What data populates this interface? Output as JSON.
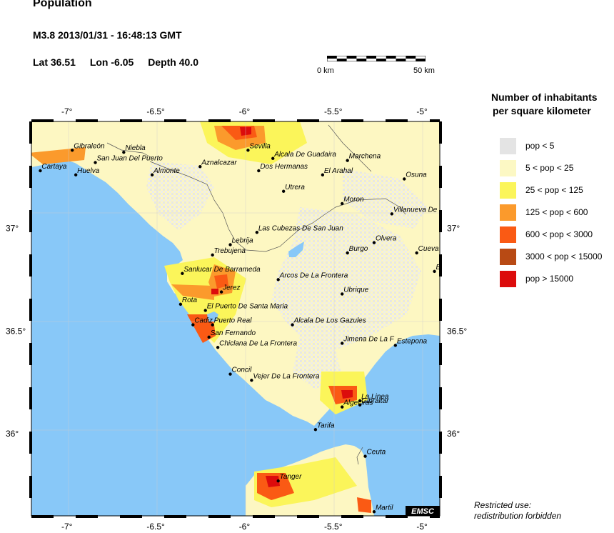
{
  "header": {
    "title": "Population",
    "event": "M3.8  2013/01/31 - 16:48:13 GMT",
    "lat": "Lat 36.51",
    "lon": "Lon  -6.05",
    "depth": "Depth  40.0"
  },
  "scale": {
    "start_label": "0 km",
    "end_label": "50 km"
  },
  "map": {
    "lon_range": [
      -7.2,
      -4.9
    ],
    "lat_range": [
      35.6,
      37.52
    ],
    "lon_ticks": [
      "-7°",
      "-6.5°",
      "-6°",
      "-5.5°",
      "-5°"
    ],
    "lon_tick_values": [
      -7,
      -6.5,
      -6,
      -5.5,
      -5
    ],
    "lat_ticks": [
      "37°",
      "36.5°",
      "36°"
    ],
    "lat_tick_values": [
      37,
      36.5,
      36
    ],
    "colors": {
      "sea": "#88c8f8",
      "land": "#fdf7c2",
      "low": "#e8e8e8",
      "mid": "#f8ef5a",
      "orange": "#f89a30",
      "red": "#d81010"
    },
    "cities": [
      {
        "name": "Gibraleón",
        "lon": -6.97,
        "lat": 37.38
      },
      {
        "name": "Niebla",
        "lon": -6.68,
        "lat": 37.37
      },
      {
        "name": "Sevilla",
        "lon": -5.98,
        "lat": 37.38
      },
      {
        "name": "Cartaya",
        "lon": -7.15,
        "lat": 37.28
      },
      {
        "name": "Huelva",
        "lon": -6.95,
        "lat": 37.26
      },
      {
        "name": "San Juan Del Puerto",
        "lon": -6.84,
        "lat": 37.32
      },
      {
        "name": "Almonte",
        "lon": -6.52,
        "lat": 37.26
      },
      {
        "name": "Aznalcazar",
        "lon": -6.25,
        "lat": 37.3
      },
      {
        "name": "Alcala De Guadaira",
        "lon": -5.84,
        "lat": 37.34
      },
      {
        "name": "Marchena",
        "lon": -5.42,
        "lat": 37.33
      },
      {
        "name": "Dos Hermanas",
        "lon": -5.92,
        "lat": 37.28
      },
      {
        "name": "El Arahal",
        "lon": -5.56,
        "lat": 37.26
      },
      {
        "name": "Osuna",
        "lon": -5.1,
        "lat": 37.24
      },
      {
        "name": "Utrera",
        "lon": -5.78,
        "lat": 37.18
      },
      {
        "name": "Moron",
        "lon": -5.45,
        "lat": 37.12
      },
      {
        "name": "Villanueva De",
        "lon": -5.17,
        "lat": 37.07
      },
      {
        "name": "Las Cubezas De San Juan",
        "lon": -5.93,
        "lat": 36.98
      },
      {
        "name": "Lebrija",
        "lon": -6.08,
        "lat": 36.92
      },
      {
        "name": "Olvera",
        "lon": -5.27,
        "lat": 36.93
      },
      {
        "name": "Trebujena",
        "lon": -6.18,
        "lat": 36.87
      },
      {
        "name": "Burgo",
        "lon": -5.42,
        "lat": 36.88
      },
      {
        "name": "Cueva",
        "lon": -5.03,
        "lat": 36.88
      },
      {
        "name": "Sanlucar De Barrameda",
        "lon": -6.35,
        "lat": 36.78
      },
      {
        "name": "Bu",
        "lon": -4.93,
        "lat": 36.79
      },
      {
        "name": "Arcos De La Frontera",
        "lon": -5.81,
        "lat": 36.75
      },
      {
        "name": "Jerez",
        "lon": -6.13,
        "lat": 36.69
      },
      {
        "name": "Ubrique",
        "lon": -5.45,
        "lat": 36.68
      },
      {
        "name": "Rota",
        "lon": -6.36,
        "lat": 36.63
      },
      {
        "name": "El Puerto De Santa Maria",
        "lon": -6.22,
        "lat": 36.6
      },
      {
        "name": "Cadiz",
        "lon": -6.29,
        "lat": 36.53
      },
      {
        "name": "Puerto Real",
        "lon": -6.18,
        "lat": 36.53
      },
      {
        "name": "Alcala De Los Gazules",
        "lon": -5.73,
        "lat": 36.53
      },
      {
        "name": "San Fernando",
        "lon": -6.2,
        "lat": 36.47
      },
      {
        "name": "Jimena De La F",
        "lon": -5.45,
        "lat": 36.44
      },
      {
        "name": "Estepona",
        "lon": -5.15,
        "lat": 36.43
      },
      {
        "name": "Chiclana De La Frontera",
        "lon": -6.15,
        "lat": 36.42
      },
      {
        "name": "Concil",
        "lon": -6.08,
        "lat": 36.29
      },
      {
        "name": "Vejer De La Frontera",
        "lon": -5.96,
        "lat": 36.26
      },
      {
        "name": "La Linea",
        "lon": -5.35,
        "lat": 36.16
      },
      {
        "name": "Algeciras",
        "lon": -5.45,
        "lat": 36.13
      },
      {
        "name": "Gibraltar",
        "lon": -5.35,
        "lat": 36.14
      },
      {
        "name": "Tarifa",
        "lon": -5.6,
        "lat": 36.02
      },
      {
        "name": "Ceuta",
        "lon": -5.32,
        "lat": 35.89
      },
      {
        "name": "Tanger",
        "lon": -5.81,
        "lat": 35.77
      },
      {
        "name": "Martil",
        "lon": -5.27,
        "lat": 35.62
      }
    ],
    "badge": "EMSC"
  },
  "legend": {
    "title_line1": "Number of inhabitants",
    "title_line2": "per square kilometer",
    "items": [
      {
        "label": "pop < 5",
        "color": "#e4e4e4"
      },
      {
        "label": "5 < pop < 25",
        "color": "#fcf8c4"
      },
      {
        "label": "25 < pop < 125",
        "color": "#fbf55a"
      },
      {
        "label": "125 < pop < 600",
        "color": "#fb9a2c"
      },
      {
        "label": "600 < pop < 3000",
        "color": "#fa5a14"
      },
      {
        "label": "3000 < pop < 15000",
        "color": "#b84a14"
      },
      {
        "label": "pop > 15000",
        "color": "#dc0c0c"
      }
    ]
  },
  "footer": {
    "line1": "Restricted use:",
    "line2": "redistribution forbidden"
  }
}
